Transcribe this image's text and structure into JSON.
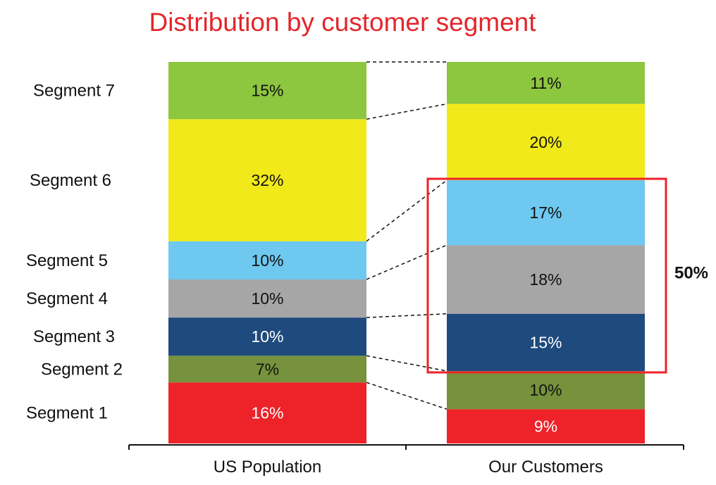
{
  "chart_data": {
    "type": "bar",
    "stacked": true,
    "title": "Distribution by customer segment",
    "categories": [
      "US Population",
      "Our Customers"
    ],
    "series": [
      {
        "name": "Segment 1",
        "values": [
          16,
          9
        ],
        "color": "#ee2229",
        "labels": [
          "16%",
          "9%"
        ]
      },
      {
        "name": "Segment 2",
        "values": [
          7,
          10
        ],
        "color": "#76923c",
        "labels": [
          "7%",
          "10%"
        ]
      },
      {
        "name": "Segment 3",
        "values": [
          10,
          15
        ],
        "color": "#1e4a7d",
        "labels": [
          "10%",
          "15%"
        ]
      },
      {
        "name": "Segment 4",
        "values": [
          10,
          18
        ],
        "color": "#a6a6a6",
        "labels": [
          "10%",
          "18%"
        ]
      },
      {
        "name": "Segment 5",
        "values": [
          10,
          17
        ],
        "color": "#6ec8f0",
        "labels": [
          "10%",
          "17%"
        ]
      },
      {
        "name": "Segment 6",
        "values": [
          32,
          20
        ],
        "color": "#f1e919",
        "labels": [
          "32%",
          "20%"
        ]
      },
      {
        "name": "Segment 7",
        "values": [
          15,
          11
        ],
        "color": "#8dc63f",
        "labels": [
          "15%",
          "11%"
        ]
      }
    ],
    "highlight": {
      "category": "Our Customers",
      "series": [
        "Segment 3",
        "Segment 4",
        "Segment 5"
      ],
      "label": "50%",
      "color": "#ee2229"
    },
    "connectors": "dashed",
    "title_color": "#e3262b",
    "label_text_colors": {
      "dark": "#111111",
      "light": "#ffffff"
    }
  }
}
